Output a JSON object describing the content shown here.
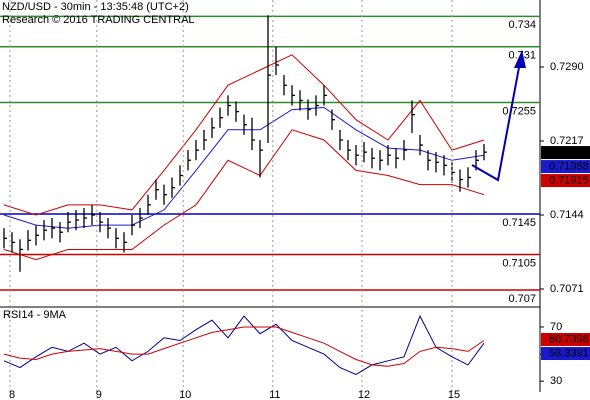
{
  "chart_data": [
    {
      "type": "ohlc",
      "title": "NZD/USD - 30min - 13:35:48 (UTC+2)",
      "subtitle": "Research © 2016 TRADING CENTRAL",
      "color": "#000000",
      "x": [
        0,
        1,
        2,
        3,
        4,
        5,
        6,
        7,
        8,
        9,
        10,
        11,
        12,
        13,
        14,
        15,
        16,
        17,
        18,
        19,
        20,
        21,
        22,
        23,
        24,
        25,
        26,
        27,
        28,
        29,
        30,
        31,
        32,
        33,
        34,
        35,
        36,
        37,
        38,
        39,
        40,
        41,
        42,
        43,
        44,
        45,
        46,
        47,
        48,
        49,
        50,
        51,
        52,
        53,
        54,
        55,
        56,
        57,
        58,
        59,
        60
      ],
      "high": [
        0.7131,
        0.7127,
        0.712,
        0.7129,
        0.7134,
        0.7139,
        0.7141,
        0.7137,
        0.7147,
        0.7149,
        0.7151,
        0.7154,
        0.7147,
        0.7141,
        0.7131,
        0.7127,
        0.7144,
        0.7151,
        0.7164,
        0.7179,
        0.7174,
        0.7181,
        0.7193,
        0.7208,
        0.7218,
        0.7228,
        0.724,
        0.725,
        0.7262,
        0.7256,
        0.7243,
        0.724,
        0.7218,
        0.7341,
        0.731,
        0.7282,
        0.7272,
        0.7267,
        0.7258,
        0.7262,
        0.7272,
        0.7248,
        0.7228,
        0.7218,
        0.7213,
        0.7216,
        0.721,
        0.7208,
        0.7213,
        0.721,
        0.7218,
        0.7257,
        0.7223,
        0.7208,
        0.7206,
        0.7203,
        0.7196,
        0.7189,
        0.7191,
        0.7208,
        0.7214
      ],
      "low": [
        0.7111,
        0.7107,
        0.7088,
        0.7109,
        0.7114,
        0.7119,
        0.7121,
        0.7117,
        0.7127,
        0.7129,
        0.7131,
        0.7134,
        0.7127,
        0.7121,
        0.7111,
        0.7107,
        0.7124,
        0.7131,
        0.7144,
        0.7159,
        0.7154,
        0.7161,
        0.7173,
        0.7188,
        0.7198,
        0.7208,
        0.722,
        0.723,
        0.7242,
        0.7236,
        0.7223,
        0.7208,
        0.7181,
        0.7215,
        0.7282,
        0.7262,
        0.7252,
        0.7247,
        0.7238,
        0.7242,
        0.7252,
        0.7228,
        0.7208,
        0.7198,
        0.7193,
        0.7196,
        0.719,
        0.7188,
        0.7193,
        0.719,
        0.7198,
        0.7225,
        0.7203,
        0.7188,
        0.7186,
        0.7183,
        0.7176,
        0.7167,
        0.7171,
        0.7188,
        0.7198
      ],
      "close": [
        0.7121,
        0.7117,
        0.711,
        0.7119,
        0.7124,
        0.7129,
        0.7131,
        0.7127,
        0.7137,
        0.7139,
        0.7141,
        0.7144,
        0.7137,
        0.7131,
        0.7121,
        0.7117,
        0.7134,
        0.7141,
        0.7154,
        0.7169,
        0.7164,
        0.7171,
        0.7183,
        0.7198,
        0.7208,
        0.7218,
        0.723,
        0.724,
        0.7252,
        0.7246,
        0.7233,
        0.7218,
        0.7208,
        0.7282,
        0.7292,
        0.7272,
        0.7262,
        0.7257,
        0.7248,
        0.7252,
        0.7262,
        0.7238,
        0.7218,
        0.7208,
        0.7203,
        0.7206,
        0.72,
        0.7198,
        0.7203,
        0.72,
        0.7208,
        0.7243,
        0.7213,
        0.7198,
        0.7196,
        0.7193,
        0.7186,
        0.7179,
        0.7181,
        0.7198,
        0.7206
      ],
      "overlay_x": [
        0,
        4,
        8,
        12,
        16,
        20,
        24,
        28,
        32,
        36,
        40,
        44,
        48,
        52,
        56,
        60
      ],
      "overlays": [
        {
          "color": "#cc0000",
          "values": [
            0.7154,
            0.7144,
            0.7154,
            0.7154,
            0.7149,
            0.7188,
            0.7228,
            0.7272,
            0.7287,
            0.7302,
            0.7272,
            0.7238,
            0.7218,
            0.7257,
            0.7208,
            0.7218
          ]
        },
        {
          "color": "#cc0000",
          "values": [
            0.711,
            0.71,
            0.711,
            0.711,
            0.711,
            0.7134,
            0.7154,
            0.7198,
            0.7183,
            0.7228,
            0.7218,
            0.7188,
            0.7183,
            0.7174,
            0.7174,
            0.7164
          ]
        },
        {
          "color": "#1a1acd",
          "values": [
            0.7144,
            0.7134,
            0.7131,
            0.7134,
            0.7134,
            0.7149,
            0.7188,
            0.7228,
            0.7228,
            0.7248,
            0.725,
            0.7228,
            0.721,
            0.7208,
            0.7198,
            0.7203
          ]
        }
      ],
      "levels": [
        {
          "value": 0.734,
          "color": "#2e8b2e"
        },
        {
          "value": 0.731,
          "color": "#2e8b2e"
        },
        {
          "value": 0.7255,
          "color": "#2e8b2e"
        },
        {
          "value": 0.7145,
          "color": "#0000cc"
        },
        {
          "value": 0.7105,
          "color": "#cc0000"
        },
        {
          "value": 0.707,
          "color": "#cc0000"
        }
      ],
      "tags": [
        {
          "value": 0.72056,
          "color": "#000000"
        },
        {
          "value": 0.71988,
          "color": "#1a1acd"
        },
        {
          "value": 0.71915,
          "color": "#cc0000"
        }
      ],
      "xlim": [
        -0.5,
        67
      ],
      "ylim": [
        0.70552,
        0.73561
      ],
      "yticks": [
        {
          "value": 0.729,
          "label": "0.7290"
        },
        0.7217,
        0.7144,
        0.7071
      ]
    },
    {
      "type": "line",
      "title": "RSI14 - 9MA",
      "x": [
        0,
        2,
        4,
        6,
        8,
        10,
        12,
        14,
        16,
        18,
        20,
        22,
        24,
        26,
        28,
        30,
        32,
        34,
        36,
        38,
        40,
        42,
        44,
        46,
        48,
        50,
        52,
        54,
        56,
        58,
        60
      ],
      "series": [
        {
          "color": "#00008b",
          "values": [
            45,
            40,
            48,
            55,
            52,
            58,
            50,
            55,
            45,
            52,
            62,
            60,
            68,
            75,
            62,
            78,
            65,
            72,
            60,
            55,
            50,
            40,
            35,
            42,
            45,
            48,
            78,
            55,
            48,
            42,
            58
          ]
        },
        {
          "color": "#cc0000",
          "values": [
            50,
            47,
            46,
            50,
            52,
            53,
            54,
            52,
            50,
            50,
            54,
            58,
            62,
            66,
            68,
            70,
            70,
            70,
            66,
            62,
            58,
            52,
            46,
            42,
            41,
            43,
            52,
            55,
            54,
            52,
            60
          ]
        }
      ],
      "tags": [
        {
          "value": 60.7396,
          "color": "#cc0000"
        },
        {
          "value": 58.3391,
          "color": "#1a1acd"
        }
      ],
      "xlim": [
        -0.5,
        67
      ],
      "ylim": [
        22,
        84
      ],
      "yticks": [
        70,
        50,
        30
      ],
      "xticks": [
        {
          "value": 0.75,
          "label": "8"
        },
        {
          "value": 11.6,
          "label": "9"
        },
        {
          "value": 22.4,
          "label": "10"
        },
        {
          "value": 33.6,
          "label": "11"
        },
        {
          "value": 44.75,
          "label": "12"
        },
        {
          "value": 56,
          "label": "15"
        }
      ]
    }
  ]
}
